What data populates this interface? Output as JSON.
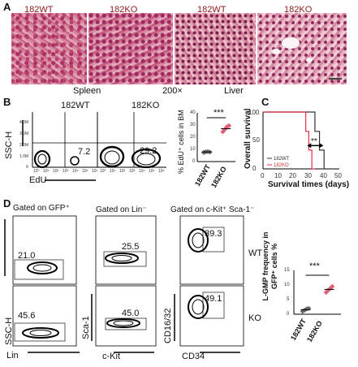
{
  "panel_labels": {
    "a": "A",
    "b": "B",
    "c": "C",
    "d": "D"
  },
  "panel_a": {
    "headers": [
      "182WT",
      "182KO",
      "182WT",
      "182KO"
    ],
    "captions": {
      "spleen": "Spleen",
      "mag": "200×",
      "liver": "Liver"
    }
  },
  "panel_b": {
    "headers": [
      "182WT",
      "182KO"
    ],
    "y_axis": "SSC-H",
    "x_axis": "EdU",
    "y_ticks": [
      "4.0M",
      "3.0M",
      "2.0M",
      "1.0M",
      "0"
    ],
    "x_ticks": [
      "10⁰",
      "10¹",
      "10²",
      "10³",
      "10⁴",
      "10⁵",
      "10⁶"
    ],
    "values": [
      "7.2",
      "29.2"
    ],
    "scatter_ylabel": "% EdU⁺ cells in BM",
    "scatter_yticks": [
      "0",
      "10",
      "20",
      "30",
      "40"
    ],
    "scatter_groups": [
      "182WT",
      "182KO"
    ],
    "sig": "***"
  },
  "panel_c": {
    "ylabel": "Overall survival",
    "xlabel": "Survival times (days)",
    "y_ticks": [
      "0",
      "50",
      "100"
    ],
    "x_ticks": [
      "0",
      "10",
      "20",
      "30",
      "40",
      "50"
    ],
    "legend": [
      "182WT",
      "182KO"
    ],
    "sig": "**"
  },
  "panel_d": {
    "gates": [
      "Gated on GFP⁺",
      "Gated on Lin⁻",
      "Gated on c-Kit⁺ Sca-1⁻"
    ],
    "values_wt": [
      "21.0",
      "25.5",
      "39.3"
    ],
    "values_ko": [
      "45.6",
      "45.0",
      "49.1"
    ],
    "row_labels": [
      "WT",
      "KO"
    ],
    "axes": {
      "ssc": "SSC-H",
      "lin": "Lin",
      "sca": "Sca-1",
      "ckit": "c-Kit",
      "cd16": "CD16/32",
      "cd34": "CD34"
    },
    "scatter_ylabel": "L-GMP frequency in GFP⁺ cells %",
    "scatter_yticks": [
      "0",
      "5",
      "10",
      "15"
    ],
    "scatter_groups": [
      "182WT",
      "182KO"
    ],
    "sig": "***"
  },
  "chart_data": [
    {
      "type": "scatter",
      "ylabel": "% EdU⁺ cells in BM",
      "categories": [
        "182WT",
        "182KO"
      ],
      "ylim": [
        0,
        40
      ],
      "series": [
        {
          "name": "182WT",
          "values": [
            7.5,
            8.0,
            8.2,
            7.8
          ],
          "mean": 7.9,
          "color": "#666666"
        },
        {
          "name": "182KO",
          "values": [
            24.5,
            26.5,
            28.5,
            29.5
          ],
          "mean": 27.0,
          "color": "#e0607a"
        }
      ],
      "significance": "***"
    },
    {
      "type": "line",
      "ylabel": "Overall survival",
      "xlabel": "Survival times (days)",
      "xlim": [
        0,
        50
      ],
      "ylim": [
        0,
        100
      ],
      "series": [
        {
          "name": "182WT",
          "color": "#333333",
          "x": [
            0,
            34,
            34,
            37,
            37,
            40,
            40,
            43
          ],
          "y": [
            100,
            100,
            66,
            66,
            33,
            33,
            0,
            0
          ]
        },
        {
          "name": "182KO",
          "color": "#e0304a",
          "x": [
            0,
            28,
            28,
            30,
            30,
            32,
            32,
            34
          ],
          "y": [
            100,
            100,
            66,
            66,
            33,
            33,
            0,
            0
          ]
        }
      ],
      "significance": "**"
    },
    {
      "type": "scatter",
      "ylabel": "L-GMP frequency in GFP⁺ cells %",
      "categories": [
        "182WT",
        "182KO"
      ],
      "ylim": [
        0,
        15
      ],
      "series": [
        {
          "name": "182WT",
          "values": [
            1.0,
            1.4,
            1.8,
            2.0
          ],
          "mean": 1.55,
          "color": "#666666"
        },
        {
          "name": "182KO",
          "values": [
            7.5,
            8.2,
            8.8,
            9.5
          ],
          "mean": 8.5,
          "color": "#e0607a"
        }
      ],
      "significance": "***"
    }
  ]
}
